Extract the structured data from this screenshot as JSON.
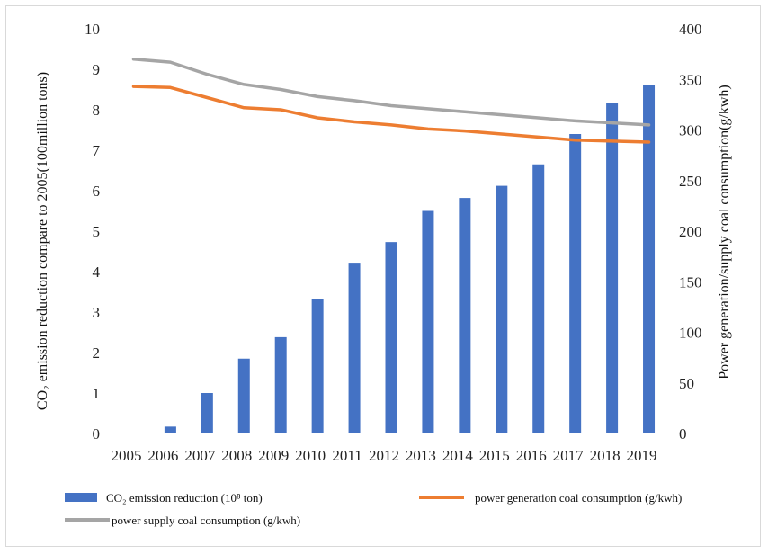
{
  "chart_data": {
    "type": "bar",
    "categories": [
      "2005",
      "2006",
      "2007",
      "2008",
      "2009",
      "2010",
      "2011",
      "2012",
      "2013",
      "2014",
      "2015",
      "2016",
      "2017",
      "2018",
      "2019"
    ],
    "series": [
      {
        "name": "CO₂ emission reduction (10⁸ ton)",
        "kind": "bar",
        "axis": "left",
        "color": "#4472c4",
        "values": [
          0,
          0.17,
          1.0,
          1.85,
          2.38,
          3.33,
          4.22,
          4.73,
          5.5,
          5.82,
          6.12,
          6.65,
          7.4,
          8.17,
          8.6
        ]
      },
      {
        "name": "power generation coal consumption (g/kwh)",
        "kind": "line",
        "axis": "right",
        "color": "#ed7d31",
        "values": [
          343,
          342,
          332,
          322,
          320,
          312,
          308,
          305,
          301,
          299,
          296,
          293,
          290,
          289,
          288
        ]
      },
      {
        "name": "power supply coal consumption (g/kwh)",
        "kind": "line",
        "axis": "right",
        "color": "#a5a5a5",
        "values": [
          370,
          367,
          355,
          345,
          340,
          333,
          329,
          324,
          321,
          318,
          315,
          312,
          309,
          307,
          305
        ]
      }
    ],
    "ylabel": "CO₂ emission reduction compare to 2005(100million tons)",
    "y2label": "Power generation/supply coal consumption(g/kwh)",
    "ylim": [
      0,
      10
    ],
    "y2lim": [
      0,
      400
    ],
    "yticks": [
      "0",
      "1",
      "2",
      "3",
      "4",
      "5",
      "6",
      "7",
      "8",
      "9",
      "10"
    ],
    "y2ticks": [
      "0",
      "50",
      "100",
      "150",
      "200",
      "250",
      "300",
      "350",
      "400"
    ],
    "grid": false,
    "legend": "bottom"
  }
}
